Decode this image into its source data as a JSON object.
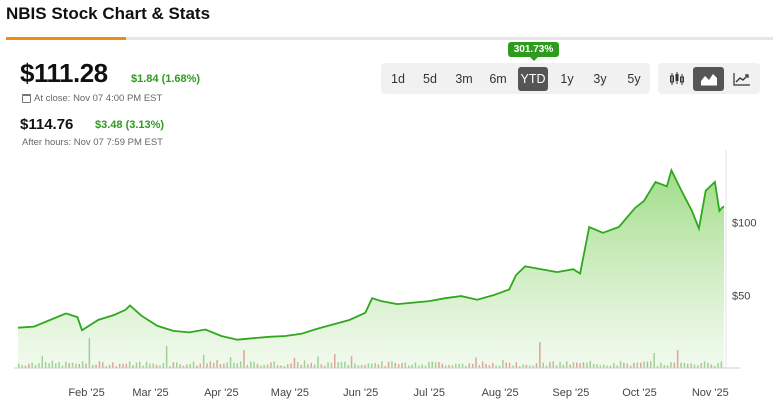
{
  "header": {
    "title": "NBIS Stock Chart & Stats"
  },
  "quote": {
    "price": "$111.28",
    "change": "$1.84 (1.68%)",
    "close_label": "At close: Nov 07 4:00 PM EST",
    "after_hours_price": "$114.76",
    "after_hours_change": "$3.48 (3.13%)",
    "after_hours_label": "After hours: Nov 07 7:59 PM EST"
  },
  "range_selector": {
    "options": [
      "1d",
      "5d",
      "3m",
      "6m",
      "YTD",
      "1y",
      "3y",
      "5y"
    ],
    "selected": "YTD",
    "tooltip": "301.73%"
  },
  "chart_types": {
    "options": [
      "candlestick-icon",
      "area-chart-icon",
      "line-chart-icon"
    ],
    "selected": "area-chart-icon"
  },
  "colors": {
    "accent": "#f28c0f",
    "up": "#2e9a1e",
    "down": "#c62828",
    "area_fill": "#9ddc86",
    "line": "#2fa81c"
  },
  "chart_data": {
    "type": "area",
    "x_labels": [
      "Feb '25",
      "Mar '25",
      "Apr '25",
      "May '25",
      "Jun '25",
      "Jul '25",
      "Aug '25",
      "Sep '25",
      "Oct '25",
      "Nov '25"
    ],
    "y_ticks": [
      "$50",
      "$100"
    ],
    "ylim": [
      0,
      150
    ],
    "points": [
      [
        "2025-01-02",
        27.7
      ],
      [
        "2025-01-09",
        28.5
      ],
      [
        "2025-01-16",
        33.0
      ],
      [
        "2025-01-23",
        37.6
      ],
      [
        "2025-01-28",
        35.0
      ],
      [
        "2025-01-30",
        26.0
      ],
      [
        "2025-02-06",
        33.0
      ],
      [
        "2025-02-13",
        36.5
      ],
      [
        "2025-02-18",
        40.0
      ],
      [
        "2025-02-20",
        43.0
      ],
      [
        "2025-02-25",
        36.0
      ],
      [
        "2025-03-04",
        29.0
      ],
      [
        "2025-03-11",
        25.5
      ],
      [
        "2025-03-18",
        24.5
      ],
      [
        "2025-03-25",
        26.5
      ],
      [
        "2025-04-01",
        22.0
      ],
      [
        "2025-04-08",
        19.5
      ],
      [
        "2025-04-15",
        20.5
      ],
      [
        "2025-04-22",
        21.5
      ],
      [
        "2025-04-29",
        22.0
      ],
      [
        "2025-05-06",
        23.5
      ],
      [
        "2025-05-13",
        27.0
      ],
      [
        "2025-05-20",
        30.0
      ],
      [
        "2025-05-27",
        33.0
      ],
      [
        "2025-06-03",
        38.0
      ],
      [
        "2025-06-06",
        48.0
      ],
      [
        "2025-06-10",
        46.0
      ],
      [
        "2025-06-17",
        44.0
      ],
      [
        "2025-06-24",
        45.0
      ],
      [
        "2025-07-01",
        46.0
      ],
      [
        "2025-07-08",
        48.0
      ],
      [
        "2025-07-15",
        49.5
      ],
      [
        "2025-07-22",
        47.0
      ],
      [
        "2025-07-29",
        50.0
      ],
      [
        "2025-08-05",
        54.0
      ],
      [
        "2025-08-08",
        64.0
      ],
      [
        "2025-08-12",
        70.0
      ],
      [
        "2025-08-19",
        68.0
      ],
      [
        "2025-08-26",
        66.0
      ],
      [
        "2025-09-02",
        68.0
      ],
      [
        "2025-09-05",
        65.0
      ],
      [
        "2025-09-09",
        97.0
      ],
      [
        "2025-09-15",
        93.0
      ],
      [
        "2025-09-22",
        97.0
      ],
      [
        "2025-09-29",
        110.0
      ],
      [
        "2025-10-03",
        115.0
      ],
      [
        "2025-10-08",
        128.0
      ],
      [
        "2025-10-13",
        125.0
      ],
      [
        "2025-10-15",
        136.0
      ],
      [
        "2025-10-20",
        120.0
      ],
      [
        "2025-10-24",
        108.0
      ],
      [
        "2025-10-27",
        96.0
      ],
      [
        "2025-10-30",
        122.0
      ],
      [
        "2025-11-03",
        128.0
      ],
      [
        "2025-11-05",
        108.0
      ],
      [
        "2025-11-06",
        110.0
      ],
      [
        "2025-11-07",
        111.28
      ]
    ],
    "grid": false,
    "volume_bars": true
  }
}
